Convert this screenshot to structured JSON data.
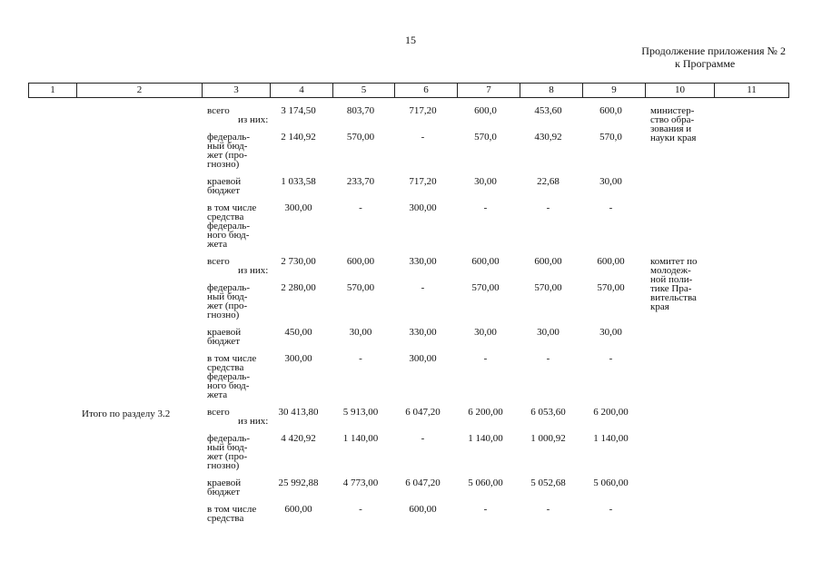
{
  "header": {
    "page_number": "15",
    "appendix": "Продолжение приложения № 2",
    "program": "к Программе"
  },
  "table": {
    "columns": [
      "1",
      "2",
      "3",
      "4",
      "5",
      "6",
      "7",
      "8",
      "9",
      "10",
      "11"
    ],
    "rows": [
      {
        "label": [
          "всего",
          "из них:"
        ],
        "values": [
          "3 174,50",
          "803,70",
          "717,20",
          "600,0",
          "453,60",
          "600,0"
        ],
        "responsible": [
          "министер-",
          "ство обра-",
          "зования и",
          "науки края"
        ]
      },
      {
        "label": [
          "федераль-",
          "ный бюд-",
          "жет (про-",
          "гнозно)"
        ],
        "values": [
          "2 140,92",
          "570,00",
          "-",
          "570,0",
          "430,92",
          "570,0"
        ]
      },
      {
        "label": [
          "краевой",
          "бюджет"
        ],
        "values": [
          "1 033,58",
          "233,70",
          "717,20",
          "30,00",
          "22,68",
          "30,00"
        ]
      },
      {
        "label": [
          "в том числе",
          "средства",
          "федераль-",
          "ного бюд-",
          "жета"
        ],
        "values": [
          "300,00",
          "-",
          "300,00",
          "-",
          "-",
          "-"
        ]
      },
      {
        "label": [
          "всего",
          "из них:"
        ],
        "values": [
          "2 730,00",
          "600,00",
          "330,00",
          "600,00",
          "600,00",
          "600,00"
        ],
        "responsible": [
          "комитет по",
          "молодеж-",
          "ной поли-",
          "тике Пра-",
          "вительства",
          "края"
        ]
      },
      {
        "label": [
          "федераль-",
          "ный бюд-",
          "жет (про-",
          "гнозно)"
        ],
        "values": [
          "2 280,00",
          "570,00",
          "-",
          "570,00",
          "570,00",
          "570,00"
        ]
      },
      {
        "label": [
          "краевой",
          "бюджет"
        ],
        "values": [
          "450,00",
          "30,00",
          "330,00",
          "30,00",
          "30,00",
          "30,00"
        ]
      },
      {
        "label": [
          "в том числе",
          "средства",
          "федераль-",
          "ного бюд-",
          "жета"
        ],
        "values": [
          "300,00",
          "-",
          "300,00",
          "-",
          "-",
          "-"
        ]
      },
      {
        "section": "Итого по разделу 3.2",
        "label": [
          "всего",
          "из них:"
        ],
        "values": [
          "30 413,80",
          "5 913,00",
          "6 047,20",
          "6 200,00",
          "6 053,60",
          "6 200,00"
        ]
      },
      {
        "label": [
          "федераль-",
          "ный бюд-",
          "жет (про-",
          "гнозно)"
        ],
        "values": [
          "4 420,92",
          "1 140,00",
          "-",
          "1 140,00",
          "1 000,92",
          "1 140,00"
        ]
      },
      {
        "label": [
          "краевой",
          "бюджет"
        ],
        "values": [
          "25 992,88",
          "4 773,00",
          "6 047,20",
          "5 060,00",
          "5 052,68",
          "5 060,00"
        ]
      },
      {
        "label": [
          "в том числе",
          "средства"
        ],
        "values": [
          "600,00",
          "-",
          "600,00",
          "-",
          "-",
          "-"
        ]
      }
    ]
  }
}
